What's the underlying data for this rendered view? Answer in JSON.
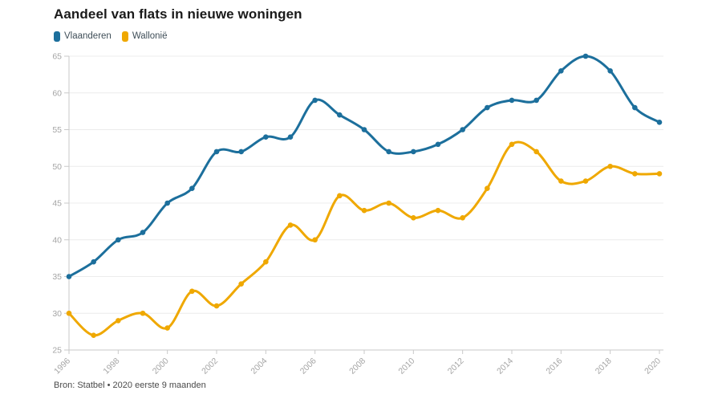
{
  "chart_data": {
    "type": "line",
    "title": "Aandeel van flats in nieuwe woningen",
    "source": "Bron: Statbel • 2020 eerste 9 maanden",
    "x": [
      1996,
      1997,
      1998,
      1999,
      2000,
      2001,
      2002,
      2003,
      2004,
      2005,
      2006,
      2007,
      2008,
      2009,
      2010,
      2011,
      2012,
      2013,
      2014,
      2015,
      2016,
      2017,
      2018,
      2019,
      2020
    ],
    "series": [
      {
        "name": "Vlaanderen",
        "color": "#1c6f9c",
        "values": [
          35,
          37,
          40,
          41,
          45,
          47,
          52,
          52,
          54,
          54,
          59,
          57,
          55,
          52,
          52,
          53,
          55,
          58,
          59,
          59,
          63,
          65,
          63,
          58,
          56
        ]
      },
      {
        "name": "Wallonië",
        "color": "#efa800",
        "values": [
          30,
          27,
          29,
          30,
          28,
          33,
          31,
          34,
          37,
          42,
          40,
          46,
          44,
          45,
          43,
          44,
          43,
          47,
          53,
          52,
          48,
          48,
          50,
          49,
          49
        ]
      }
    ],
    "ylim": [
      25,
      65
    ],
    "yticks": [
      25,
      30,
      35,
      40,
      45,
      50,
      55,
      60,
      65
    ],
    "xtick_labels": [
      "1996",
      "1998",
      "2000",
      "2002",
      "2004",
      "2006",
      "2008",
      "2010",
      "2012",
      "2014",
      "2016",
      "2018",
      "2020"
    ],
    "grid": true,
    "legend_position": "top-left",
    "axis_label_color": "#a5a5a5",
    "grid_color": "#ececec",
    "axis_line_color": "#c9c9c9"
  }
}
